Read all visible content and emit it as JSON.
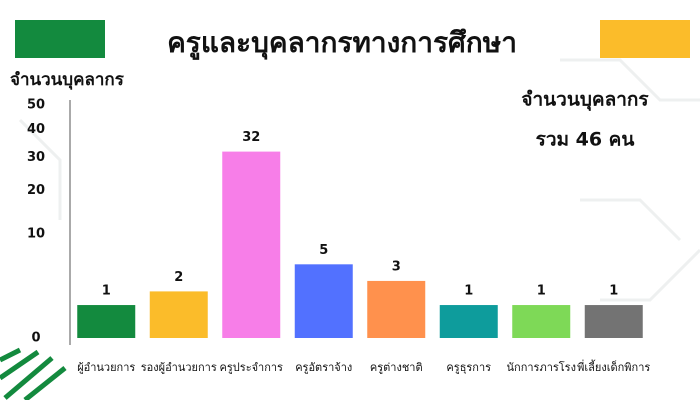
{
  "chart_data": {
    "type": "bar",
    "title": "ครูและบุคลากรทางการศึกษา",
    "y_label": "จำนวนบุคลากร",
    "annotations": [
      "จำนวนบุคลากร",
      "รวม 46 คน"
    ],
    "categories": [
      "ผู้อำนวยการ",
      "รองผู้อำนวยการ",
      "ครูประจำการ",
      "ครูอัตราจ้าง",
      "ครูต่างชาติ",
      "ครูธุรการ",
      "นักการภารโรง",
      "พี่เลี้ยงเด็กพิการ"
    ],
    "values": [
      1,
      2,
      32,
      5,
      3,
      1,
      1,
      1
    ],
    "colors": [
      "#138a3e",
      "#fbbc2a",
      "#f77ee8",
      "#5271ff",
      "#ff914d",
      "#0e9c9c",
      "#7ed957",
      "#737373"
    ],
    "ylim": [
      0,
      50
    ],
    "yticks": [
      0,
      10,
      20,
      30,
      40,
      50
    ],
    "yscale": "sqrt",
    "grid": false
  }
}
